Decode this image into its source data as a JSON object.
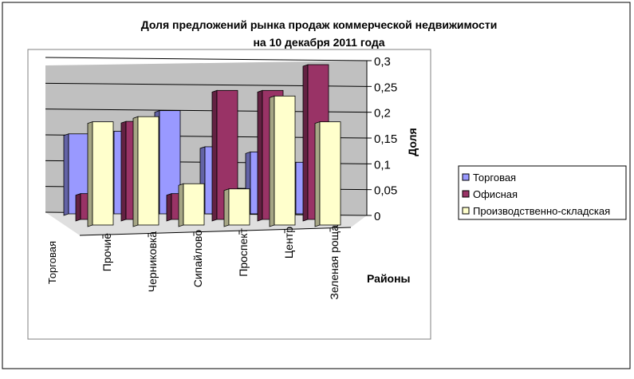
{
  "chart_data": {
    "type": "bar",
    "title": "Доля предложений рынка продаж коммерческой недвижимости",
    "subtitle": "на 10 декабря 2011 года",
    "xlabel": "Районы",
    "ylabel": "Доля",
    "categories": [
      "Прочие",
      "Черниковка",
      "Сипайлово",
      "Проспект",
      "Центр",
      "Зеленая роща"
    ],
    "series_axis_label": "Торговая",
    "series": [
      {
        "name": "Торговая",
        "color": "#9999FF",
        "values": [
          0.155,
          0.16,
          0.2,
          0.13,
          0.12,
          0.1
        ]
      },
      {
        "name": "Офисная",
        "color": "#993366",
        "values": [
          0.05,
          0.19,
          0.05,
          0.25,
          0.25,
          0.3
        ]
      },
      {
        "name": "Производственно-складская",
        "color": "#FFFFCC",
        "values": [
          0.2,
          0.21,
          0.08,
          0.07,
          0.25,
          0.2
        ]
      }
    ],
    "yticks": [
      "0",
      "0,05",
      "0,1",
      "0,15",
      "0,2",
      "0,25",
      "0,3"
    ],
    "ylim": [
      0,
      0.3
    ],
    "grid": true,
    "legend": "right",
    "three_d": true
  }
}
